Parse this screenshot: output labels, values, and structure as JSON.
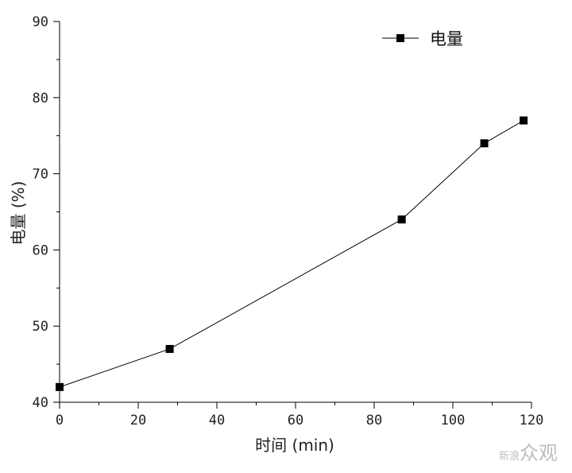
{
  "chart_data": {
    "type": "line",
    "xlabel": "时间 (min)",
    "ylabel": "电量 (%)",
    "xlim": [
      0,
      120
    ],
    "ylim": [
      40,
      90
    ],
    "xticks": [
      0,
      20,
      40,
      60,
      80,
      100,
      120
    ],
    "yticks": [
      40,
      50,
      60,
      70,
      80,
      90
    ],
    "grid": false,
    "legend_position": "top-right",
    "series": [
      {
        "name": "电量",
        "marker": "square",
        "color": "#000000",
        "x": [
          0,
          28,
          87,
          108,
          118
        ],
        "y": [
          42,
          47,
          64,
          74,
          77
        ]
      }
    ]
  },
  "watermark": {
    "logo_text_small": "新浪",
    "logo_text": "众观"
  }
}
